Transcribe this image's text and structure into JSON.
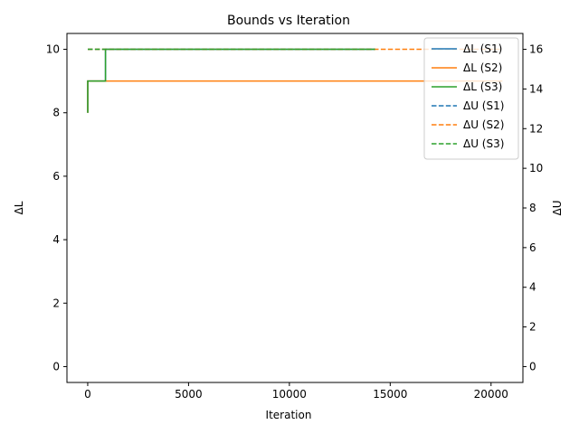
{
  "chart_data": {
    "type": "line",
    "title": "Bounds vs Iteration",
    "xlabel": "Iteration",
    "ylabel_left": "ΔL",
    "ylabel_right": "ΔU",
    "xlim": [
      -1030,
      21580
    ],
    "ylim_left": [
      -0.5,
      10.5
    ],
    "ylim_right": [
      -0.8,
      16.8
    ],
    "xticks": [
      0,
      5000,
      10000,
      15000,
      20000
    ],
    "yticks_left": [
      0,
      2,
      4,
      6,
      8,
      10
    ],
    "yticks_right": [
      0,
      2,
      4,
      6,
      8,
      10,
      12,
      14,
      16
    ],
    "grid": false,
    "legend_position": "upper-right",
    "series": [
      {
        "name": "ΔL (S1)",
        "axis": "left",
        "style": "solid",
        "color": "#1f77b4",
        "x": [
          0,
          1,
          1,
          880,
          880,
          14250
        ],
        "y": [
          8,
          8,
          9,
          9,
          10,
          10
        ]
      },
      {
        "name": "ΔL (S2)",
        "axis": "left",
        "style": "solid",
        "color": "#ff7f0e",
        "x": [
          0,
          1,
          1,
          20560
        ],
        "y": [
          8,
          8,
          9,
          9
        ]
      },
      {
        "name": "ΔL (S3)",
        "axis": "left",
        "style": "solid",
        "color": "#2ca02c",
        "x": [
          0,
          1,
          1,
          880,
          880,
          14250
        ],
        "y": [
          8,
          8,
          9,
          9,
          10,
          10
        ]
      },
      {
        "name": "ΔU (S1)",
        "axis": "right",
        "style": "dashed",
        "color": "#1f77b4",
        "x": [
          0,
          14250
        ],
        "y": [
          16,
          16
        ]
      },
      {
        "name": "ΔU (S2)",
        "axis": "right",
        "style": "dashed",
        "color": "#ff7f0e",
        "x": [
          0,
          20560
        ],
        "y": [
          16,
          16
        ]
      },
      {
        "name": "ΔU (S3)",
        "axis": "right",
        "style": "dashed",
        "color": "#2ca02c",
        "x": [
          0,
          14250
        ],
        "y": [
          16,
          16
        ]
      }
    ]
  }
}
